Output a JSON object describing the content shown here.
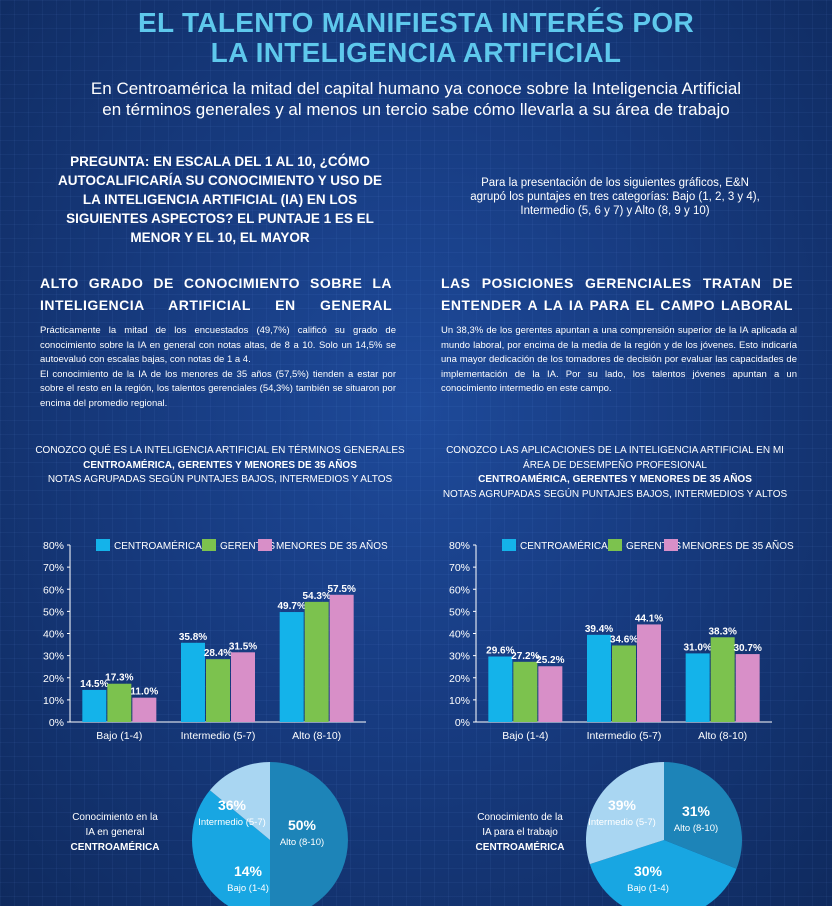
{
  "header": {
    "title_line1": "EL TALENTO MANIFIESTA INTERÉS POR",
    "title_line2": "LA INTELIGENCIA ARTIFICIAL",
    "subtitle_line1": "En Centroamérica la mitad del capital humano ya conoce sobre la Inteligencia Artificial",
    "subtitle_line2": "en términos generales y al menos un tercio sabe cómo llevarla a su área de trabajo"
  },
  "question": {
    "lines": [
      "PREGUNTA: EN ESCALA DEL 1 AL 10, ¿CÓMO",
      "AUTOCALIFICARÍA SU CONOCIMIENTO Y USO DE",
      "LA INTELIGENCIA ARTIFICIAL (IA) EN LOS",
      "SIGUIENTES ASPECTOS? EL PUNTAJE 1 ES EL",
      "MENOR Y EL 10, EL MAYOR"
    ]
  },
  "note": {
    "lines": [
      "Para la presentación de los siguientes gráficos, E&N",
      "agrupó los puntajes en tres categorías: Bajo (1, 2, 3 y 4),",
      "Intermedio (5, 6 y 7) y Alto (8, 9 y 10)"
    ]
  },
  "left_section": {
    "heading_line1": "ALTO GRADO DE CONOCIMIENTO SOBRE LA",
    "heading_line2": "INTELIGENCIA ARTIFICIAL EN GENERAL",
    "para1": "Prácticamente la mitad de los encuestados (49,7%) calificó su grado de conocimiento sobre la IA en general con notas altas, de 8 a 10. Solo un 14,5% se autoevaluó con escalas bajas, con notas de 1 a 4.",
    "para2": "El conocimiento de la IA de los menores de 35 años (57,5%) tienden a estar por sobre el resto en la región, los talentos gerenciales (54,3%) también se situaron por encima del promedio regional."
  },
  "right_section": {
    "heading_line1": "LAS POSICIONES GERENCIALES TRATAN DE",
    "heading_line2": "ENTENDER A LA IA PARA EL CAMPO LABORAL",
    "para1": "Un 38,3% de los gerentes apuntan a una comprensión superior de la IA aplicada al mundo laboral, por encima de la media de la región y de los jóvenes. Esto indicaría una mayor dedicación de los tomadores de decisión por evaluar las capacidades de implementación de la IA. Por su lado, los talentos jóvenes apuntan a un conocimiento intermedio en este campo."
  },
  "colors": {
    "centroamerica": "#14b3ea",
    "gerentes": "#7cc24e",
    "menores": "#d88fc8",
    "pie_dark": "#1d84b8",
    "pie_mid": "#18a6e2",
    "pie_light": "#a9d6f2"
  },
  "chart_data": [
    {
      "type": "bar",
      "title_line1": "CONOZCO QUÉ ES LA INTELIGENCIA ARTIFICIAL EN TÉRMINOS GENERALES",
      "title_line2": "CENTROAMÉRICA, GERENTES Y MENORES DE 35 AÑOS",
      "title_line3": "NOTAS AGRUPADAS SEGÚN PUNTAJES BAJOS, INTERMEDIOS Y ALTOS",
      "categories": [
        "Bajo (1-4)",
        "Intermedio (5-7)",
        "Alto (8-10)"
      ],
      "series": [
        {
          "name": "CENTROAMÉRICA",
          "values": [
            14.5,
            35.8,
            49.7
          ],
          "labels": [
            "14.5%",
            "35.8%",
            "49.7%"
          ]
        },
        {
          "name": "GERENTES",
          "values": [
            17.3,
            28.4,
            54.3
          ],
          "labels": [
            "17.3%",
            "28.4%",
            "54.3%"
          ]
        },
        {
          "name": "MENORES DE 35 AÑOS",
          "values": [
            11.0,
            31.5,
            57.5
          ],
          "labels": [
            "11.0%",
            "31.5%",
            "57.5%"
          ]
        }
      ],
      "yticks": [
        "0%",
        "10%",
        "20%",
        "30%",
        "40%",
        "50%",
        "60%",
        "70%",
        "80%"
      ],
      "ylim": [
        0,
        80
      ],
      "legend": "top"
    },
    {
      "type": "bar",
      "title_line1": "CONOZCO LAS APLICACIONES DE LA INTELIGENCIA ARTIFICIAL EN MI",
      "title_line2": "ÁREA DE DESEMPEÑO PROFESIONAL",
      "title_line3": "CENTROAMÉRICA, GERENTES Y MENORES DE 35 AÑOS",
      "title_line4": "NOTAS AGRUPADAS SEGÚN PUNTAJES BAJOS, INTERMEDIOS Y ALTOS",
      "categories": [
        "Bajo (1-4)",
        "Intermedio (5-7)",
        "Alto (8-10)"
      ],
      "series": [
        {
          "name": "CENTROAMÉRICA",
          "values": [
            29.6,
            39.4,
            31.0
          ],
          "labels": [
            "29.6%",
            "39.4%",
            "31.0%"
          ]
        },
        {
          "name": "GERENTES",
          "values": [
            27.2,
            34.6,
            38.3
          ],
          "labels": [
            "27.2%",
            "34.6%",
            "38.3%"
          ]
        },
        {
          "name": "MENORES DE 35 AÑOS",
          "values": [
            25.2,
            44.1,
            30.7
          ],
          "labels": [
            "25.2%",
            "44.1%",
            "30.7%"
          ]
        }
      ],
      "yticks": [
        "0%",
        "10%",
        "20%",
        "30%",
        "40%",
        "50%",
        "60%",
        "70%",
        "80%"
      ],
      "ylim": [
        0,
        80
      ],
      "legend": "top"
    },
    {
      "type": "pie",
      "label_line1": "Conocimiento en la",
      "label_line2": "IA en general",
      "label_line3": "CENTROAMÉRICA",
      "slices": [
        {
          "name": "Alto (8-10)",
          "value": 50,
          "label": "50%"
        },
        {
          "name": "Intermedio (5-7)",
          "value": 36,
          "label": "36%"
        },
        {
          "name": "Bajo (1-4)",
          "value": 14,
          "label": "14%"
        }
      ]
    },
    {
      "type": "pie",
      "label_line1": "Conocimiento de la",
      "label_line2": "IA para el trabajo",
      "label_line3": "CENTROAMÉRICA",
      "slices": [
        {
          "name": "Alto (8-10)",
          "value": 31,
          "label": "31%"
        },
        {
          "name": "Intermedio (5-7)",
          "value": 39,
          "label": "39%"
        },
        {
          "name": "Bajo (1-4)",
          "value": 30,
          "label": "30%"
        }
      ]
    }
  ]
}
